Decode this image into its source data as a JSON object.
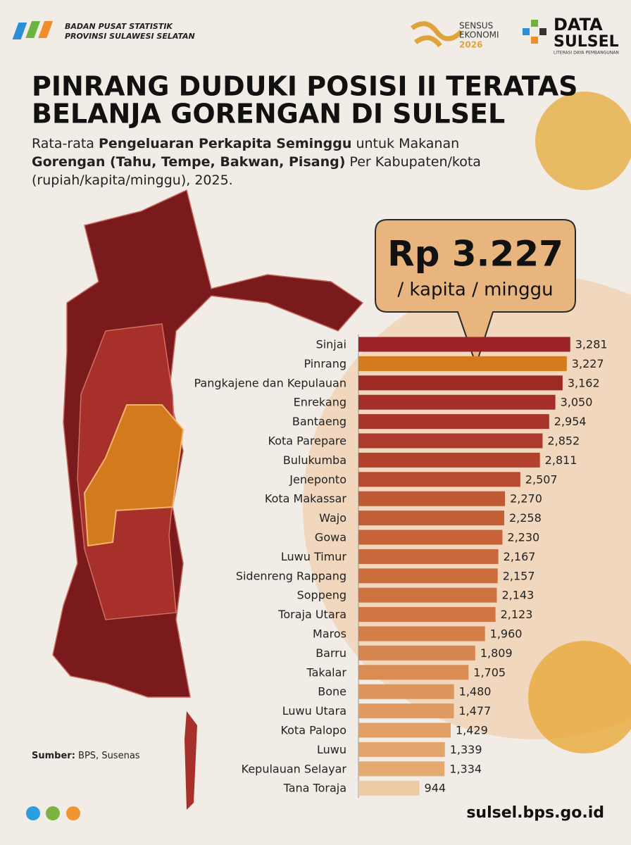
{
  "header": {
    "agency": [
      "BADAN PUSAT STATISTIK",
      "PROVINSI SULAWESI SELATAN"
    ],
    "census": [
      "SENSUS",
      "EKONOMI",
      "2026"
    ],
    "brand": [
      "DATA",
      "SULSEL"
    ],
    "brand_tagline": "LITERASI DAYA PEMBANGUNAN"
  },
  "chart_data": {
    "type": "bar",
    "orientation": "horizontal",
    "title": [
      "PINRANG DUDUKI POSISI II TERATAS",
      "BELANJA GORENGAN DI SULSEL"
    ],
    "subtitle": [
      [
        {
          "text": "Rata-rata ",
          "bold": false
        },
        {
          "text": "Pengeluaran Perkapita Seminggu",
          "bold": true
        },
        {
          "text": " untuk Makanan",
          "bold": false
        }
      ],
      [
        {
          "text": "Gorengan (Tahu, Tempe, Bakwan, Pisang)",
          "bold": true
        },
        {
          "text": " Per Kabupaten/kota",
          "bold": false
        }
      ],
      [
        {
          "text": "(rupiah/kapita/minggu), 2025.",
          "bold": false
        }
      ]
    ],
    "callout": [
      "Rp 3.227",
      "/ kapita / minggu"
    ],
    "categories": [
      "Sinjai",
      "Pinrang",
      "Pangkajene dan Kepulauan",
      "Enrekang",
      "Bantaeng",
      "Kota Parepare",
      "Bulukumba",
      "Jeneponto",
      "Kota Makassar",
      "Wajo",
      "Gowa",
      "Luwu Timur",
      "Sidenreng Rappang",
      "Soppeng",
      "Toraja Utara",
      "Maros",
      "Barru",
      "Takalar",
      "Bone",
      "Luwu Utara",
      "Kota Palopo",
      "Luwu",
      "Kepulauan Selayar",
      "Tana Toraja"
    ],
    "values": [
      3281,
      3227,
      3162,
      3050,
      2954,
      2852,
      2811,
      2507,
      2270,
      2258,
      2230,
      2167,
      2157,
      2143,
      2123,
      1960,
      1809,
      1705,
      1480,
      1477,
      1429,
      1339,
      1334,
      944
    ],
    "value_labels": [
      "3,281",
      "3,227",
      "3,162",
      "3,050",
      "2,954",
      "2,852",
      "2,811",
      "2,507",
      "2,270",
      "2,258",
      "2,230",
      "2,167",
      "2,157",
      "2,143",
      "2,123",
      "1,960",
      "1,809",
      "1,705",
      "1,480",
      "1,477",
      "1,429",
      "1,339",
      "1,334",
      "944"
    ],
    "colors": [
      "#9b2226",
      "#d67a1e",
      "#9e2a27",
      "#a32f28",
      "#a8352a",
      "#ad3b2c",
      "#b2412e",
      "#b84a30",
      "#bf5a34",
      "#c25e36",
      "#c66338",
      "#c9683b",
      "#cc6d3e",
      "#ce7240",
      "#d07643",
      "#d37d48",
      "#d6854e",
      "#d98c54",
      "#dc955c",
      "#de9a61",
      "#e0a066",
      "#e2a56c",
      "#e4aa72",
      "#eccba4"
    ],
    "xlim": [
      0,
      3300
    ]
  },
  "footer": {
    "source_label": "Sumber:",
    "source": " BPS, Susenas",
    "url": "sulsel.bps.go.id"
  }
}
